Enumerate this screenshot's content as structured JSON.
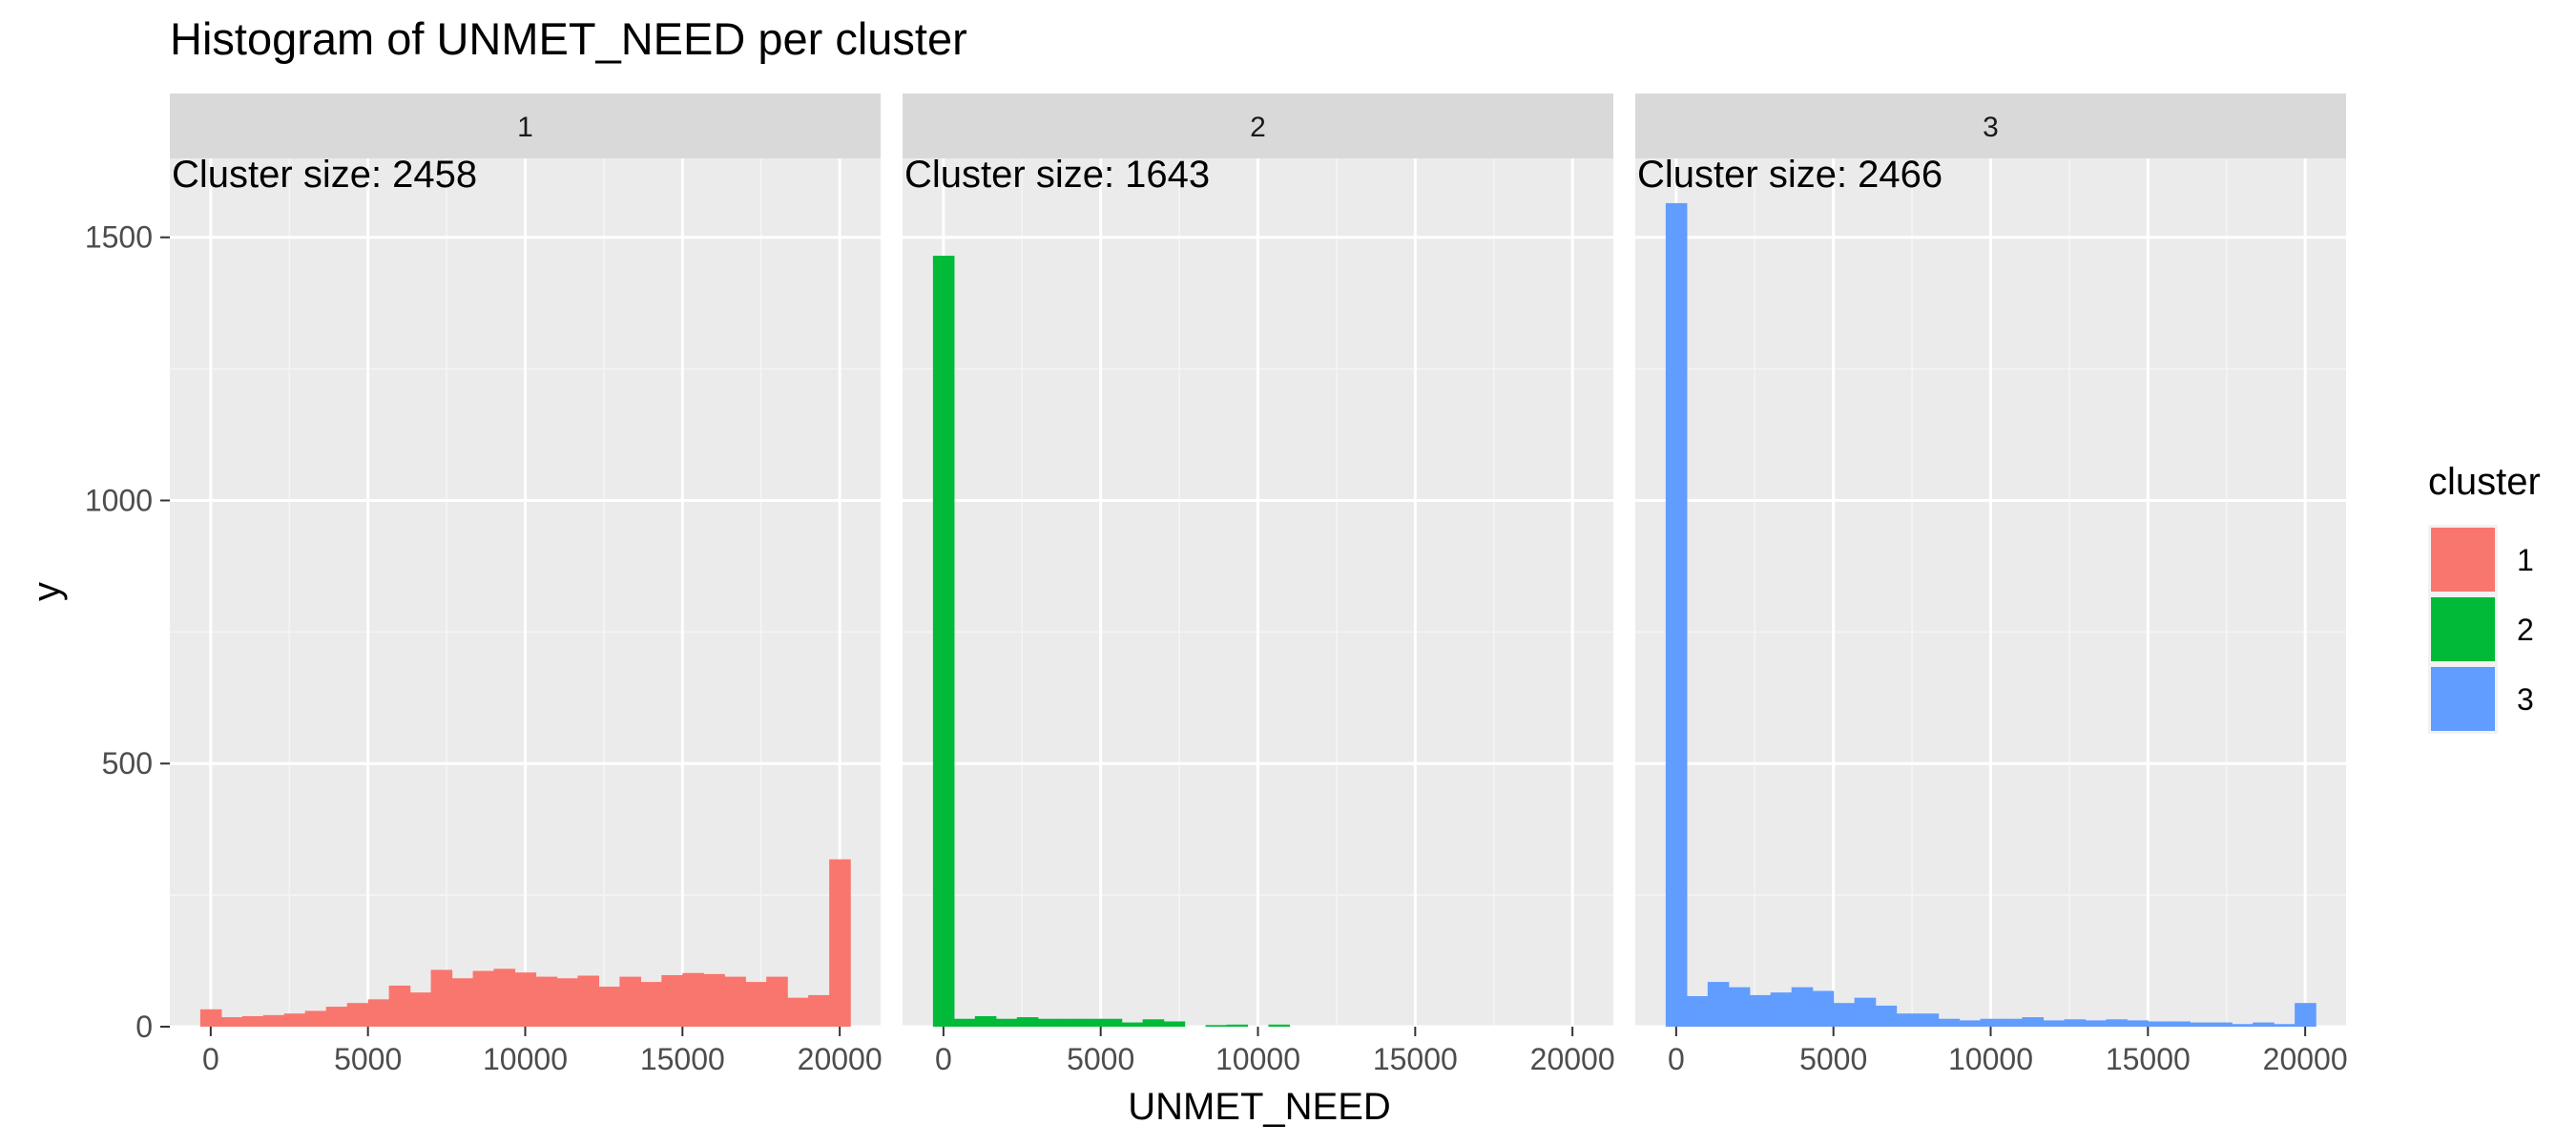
{
  "chart_data": {
    "type": "bar",
    "title": "Histogram of UNMET_NEED per cluster",
    "xlabel": "UNMET_NEED",
    "ylabel": "y",
    "xlim": [
      -1300,
      21300
    ],
    "ylim": [
      0,
      1650
    ],
    "x_ticks": [
      0,
      5000,
      10000,
      15000,
      20000
    ],
    "x_tick_labels": [
      "0",
      "5000",
      "10000",
      "15000",
      "20000"
    ],
    "y_ticks": [
      0,
      500,
      1000,
      1500
    ],
    "y_tick_labels": [
      "0",
      "500",
      "1000",
      "1500"
    ],
    "grid": true,
    "bin_width": 667,
    "bin_centers": [
      0,
      667,
      1333,
      2000,
      2667,
      3333,
      4000,
      4667,
      5333,
      6000,
      6667,
      7333,
      8000,
      8667,
      9333,
      10000,
      10667,
      11333,
      12000,
      12667,
      13333,
      14000,
      14667,
      15333,
      16000,
      16667,
      17333,
      18000,
      18667,
      19333,
      20000
    ],
    "legend": {
      "title": "cluster",
      "position": "right"
    },
    "panels": [
      {
        "strip": "1",
        "annotation": "Cluster size: 2458",
        "name": "1",
        "color": "#F8766D",
        "values": [
          33,
          18,
          20,
          22,
          25,
          30,
          38,
          45,
          52,
          78,
          65,
          108,
          92,
          106,
          110,
          103,
          95,
          92,
          97,
          76,
          95,
          85,
          98,
          102,
          100,
          95,
          85,
          95,
          55,
          60,
          318
        ]
      },
      {
        "strip": "2",
        "annotation": "Cluster size: 1643",
        "name": "2",
        "color": "#00BA38",
        "values": [
          1465,
          15,
          20,
          15,
          18,
          15,
          15,
          15,
          15,
          8,
          14,
          10,
          0,
          3,
          4,
          0,
          4,
          0,
          0,
          0,
          0,
          0,
          0,
          0,
          0,
          0,
          0,
          0,
          0,
          0,
          0
        ]
      },
      {
        "strip": "3",
        "annotation": "Cluster size: 2466",
        "name": "3",
        "color": "#619CFF",
        "values": [
          1565,
          58,
          85,
          75,
          60,
          65,
          75,
          68,
          45,
          55,
          40,
          25,
          25,
          15,
          12,
          15,
          15,
          18,
          12,
          14,
          12,
          14,
          12,
          10,
          10,
          8,
          8,
          5,
          8,
          5,
          45
        ]
      }
    ]
  }
}
